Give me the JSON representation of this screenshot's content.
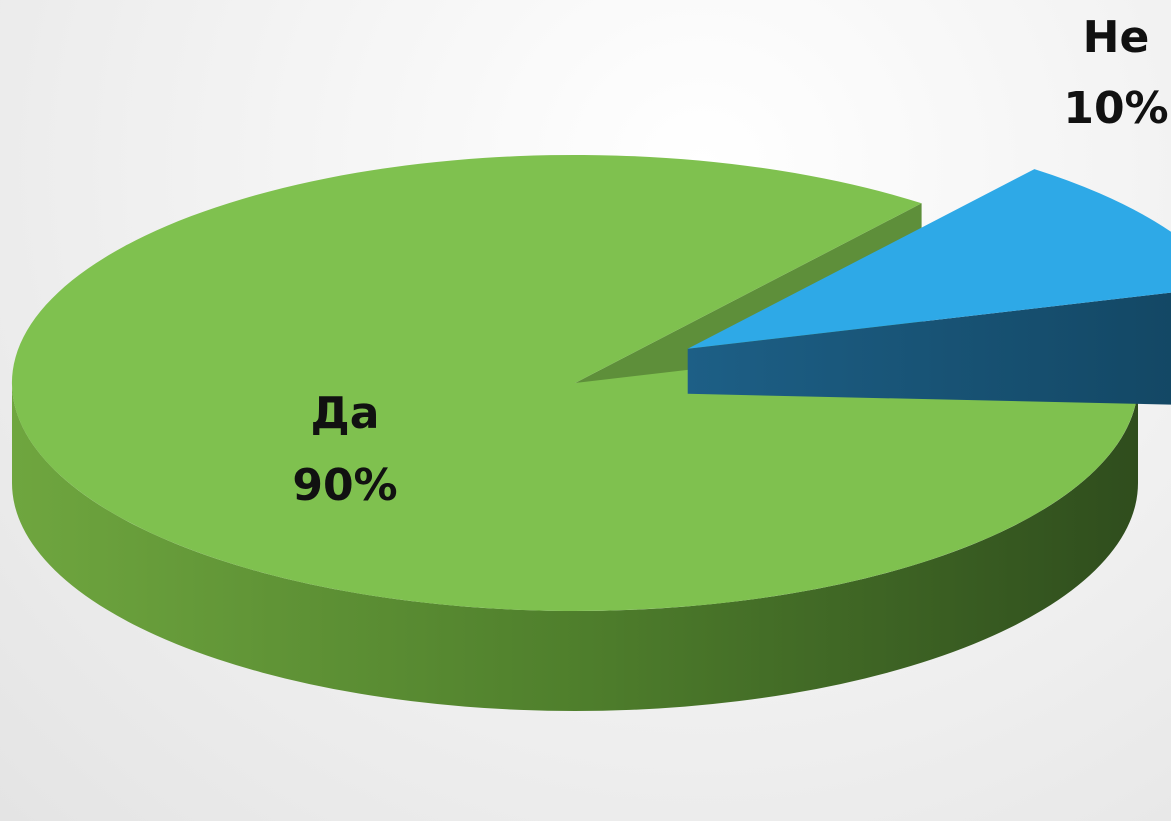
{
  "chart_data": {
    "type": "pie",
    "title": "",
    "slices": [
      {
        "label": "Да",
        "value": 90,
        "display": "90%",
        "color": "#7fbf4d"
      },
      {
        "label": "Не",
        "value": 10,
        "display": "10%",
        "color": "#2ea8e6"
      }
    ],
    "style": "3d-exploded",
    "legend": "none"
  }
}
